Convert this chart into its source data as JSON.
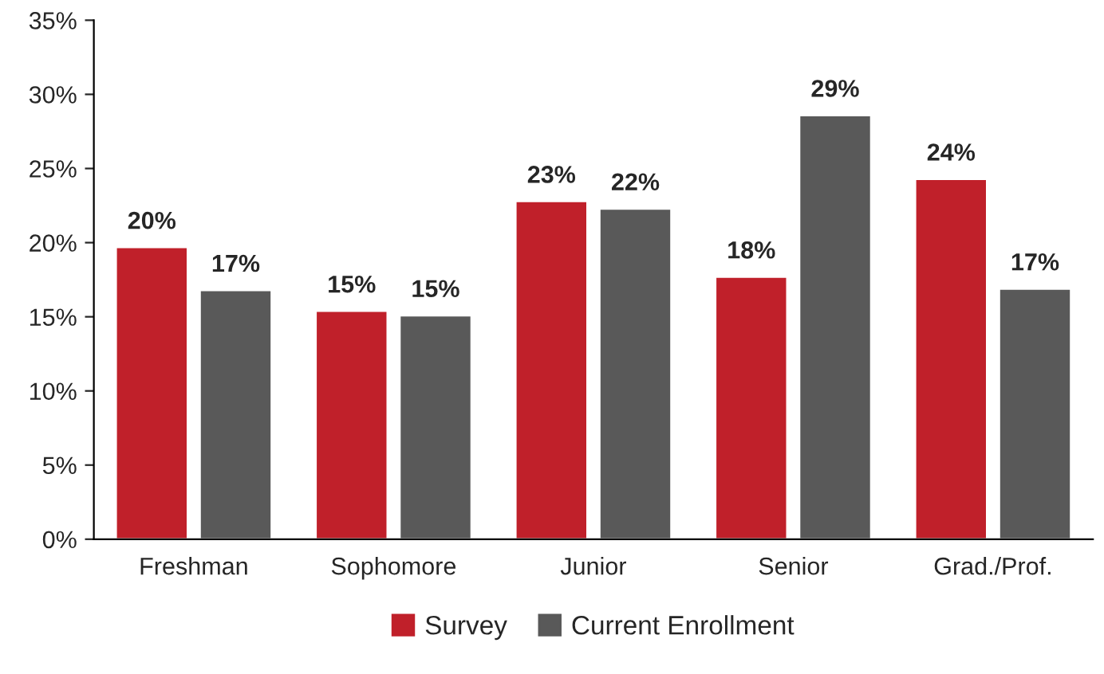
{
  "chart_data": {
    "type": "bar",
    "categories": [
      "Freshman",
      "Sophomore",
      "Junior",
      "Senior",
      "Grad./Prof."
    ],
    "series": [
      {
        "name": "Survey",
        "color": "#c0202a",
        "values": [
          19.7,
          15.4,
          22.8,
          17.7,
          24.3
        ],
        "value_labels": [
          "20%",
          "15%",
          "23%",
          "18%",
          "24%"
        ]
      },
      {
        "name": "Current Enrollment",
        "color": "#595959",
        "values": [
          16.8,
          15.1,
          22.3,
          28.6,
          16.9
        ],
        "value_labels": [
          "17%",
          "15%",
          "22%",
          "29%",
          "17%"
        ]
      }
    ],
    "ylim": [
      0,
      35
    ],
    "yticks": [
      {
        "value": 0,
        "label": "0%"
      },
      {
        "value": 5,
        "label": "5%"
      },
      {
        "value": 10,
        "label": "10%"
      },
      {
        "value": 15,
        "label": "15%"
      },
      {
        "value": 20,
        "label": "20%"
      },
      {
        "value": 25,
        "label": "25%"
      },
      {
        "value": 30,
        "label": "30%"
      },
      {
        "value": 35,
        "label": "35%"
      }
    ],
    "grid": false,
    "legend": "bottom"
  }
}
